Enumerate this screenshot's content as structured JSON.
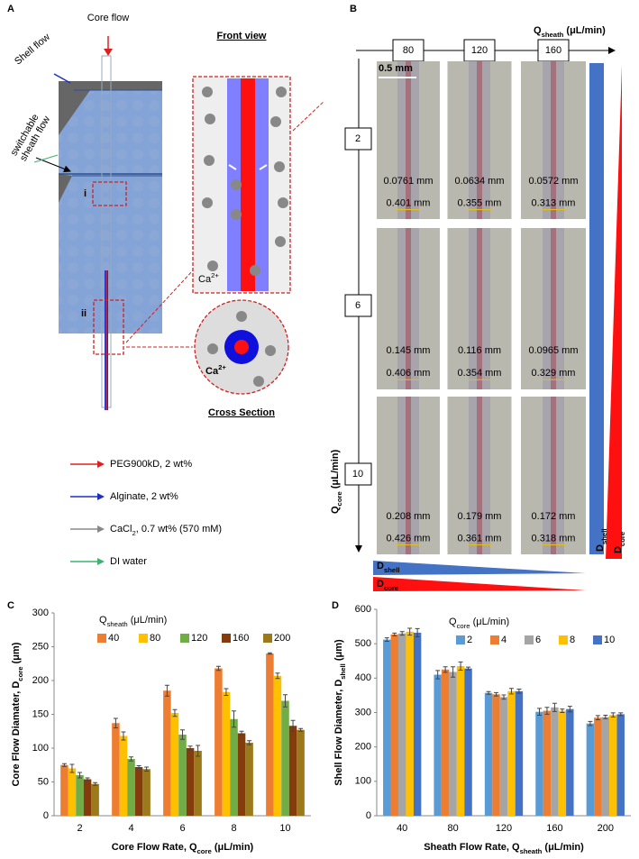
{
  "panel_a": {
    "label": "A",
    "core_flow": "Core flow",
    "shell_flow": "Shell flow",
    "switchable_sheath_flow": [
      "switchable",
      "sheath flow"
    ],
    "inset_i": "i",
    "inset_ii": "ii",
    "front_view": "Front view",
    "front_ca": [
      "Ca",
      "2+"
    ],
    "cross_ca": [
      "Ca",
      "2+"
    ],
    "cross_section": "Cross Section",
    "legend": [
      {
        "parts": [
          "PEG900kD, 2 wt%"
        ],
        "color": "#e02020"
      },
      {
        "parts": [
          "Alginate, 2 wt%"
        ],
        "color": "#1f2fbf"
      },
      {
        "parts": [
          "CaCl",
          "2",
          ", 0.7 wt% (570 mM)"
        ],
        "color": "#888888"
      },
      {
        "parts": [
          "DI water"
        ],
        "color": "#3cb371"
      }
    ]
  },
  "panel_b": {
    "label": "B",
    "q_sheath": [
      "Q",
      "sheath",
      " (μL/min)"
    ],
    "q_core": [
      "Q",
      "core",
      " (μL/min)"
    ],
    "columns": [
      80,
      120,
      160
    ],
    "rows": [
      2,
      6,
      10
    ],
    "scale_bar": "0.5 mm",
    "cells": [
      [
        [
          "0.0761 mm",
          "0.401 mm"
        ],
        [
          "0.0634 mm",
          "0.355 mm"
        ],
        [
          "0.0572 mm",
          "0.313 mm"
        ]
      ],
      [
        [
          "0.145 mm",
          "0.406 mm"
        ],
        [
          "0.116 mm",
          "0.354 mm"
        ],
        [
          "0.0965 mm",
          "0.329 mm"
        ]
      ],
      [
        [
          "0.208 mm",
          "0.426 mm"
        ],
        [
          "0.179 mm",
          "0.361 mm"
        ],
        [
          "0.172 mm",
          "0.318 mm"
        ]
      ]
    ],
    "bar_d_shell": [
      "D",
      "shell"
    ],
    "bar_d_core": [
      "D",
      "core"
    ],
    "wedge_d_shell": [
      "D",
      "shell"
    ],
    "wedge_d_core": [
      "D",
      "core"
    ]
  },
  "chart_data": [
    {
      "type": "bar",
      "panel": "C",
      "legend_title": [
        "Q",
        "sheath",
        " (μL/min)"
      ],
      "x_label": [
        "Core Flow Rate, Q",
        "core",
        " (μL/min)"
      ],
      "y_label": [
        "Core Flow Diamater, D",
        "core",
        " (μm)"
      ],
      "categories": [
        2,
        4,
        6,
        8,
        10
      ],
      "ylim": [
        0,
        300
      ],
      "yticks": [
        0,
        50,
        100,
        150,
        200,
        250,
        300
      ],
      "grid": false,
      "series": [
        {
          "name": "40",
          "color": "#ed7d31",
          "values": [
            75,
            137,
            185,
            218,
            240
          ],
          "errors": [
            2,
            7,
            8,
            3,
            1
          ]
        },
        {
          "name": "80",
          "color": "#ffc000",
          "values": [
            70,
            118,
            152,
            183,
            207
          ],
          "errors": [
            6,
            6,
            5,
            5,
            4
          ]
        },
        {
          "name": "120",
          "color": "#70ad47",
          "values": [
            60,
            84,
            120,
            143,
            170
          ],
          "errors": [
            4,
            3,
            7,
            12,
            9
          ]
        },
        {
          "name": "160",
          "color": "#843c0c",
          "values": [
            54,
            72,
            100,
            122,
            133
          ],
          "errors": [
            2,
            2,
            3,
            3,
            8
          ]
        },
        {
          "name": "200",
          "color": "#9c7a1c",
          "values": [
            47,
            69,
            96,
            108,
            127
          ],
          "errors": [
            2,
            3,
            8,
            3,
            2
          ]
        }
      ]
    },
    {
      "type": "bar",
      "panel": "D",
      "legend_title": [
        "Q",
        "core",
        " (μL/min)"
      ],
      "x_label": [
        "Sheath Flow Rate, Q",
        "sheath",
        " (μL/min)"
      ],
      "y_label": [
        "Shell Flow Diameter, D",
        "shell",
        " (μm)"
      ],
      "categories": [
        40,
        80,
        120,
        160,
        200
      ],
      "ylim": [
        0,
        600
      ],
      "yticks": [
        0,
        100,
        200,
        300,
        400,
        500,
        600
      ],
      "grid": false,
      "series": [
        {
          "name": "2",
          "color": "#5b9bd5",
          "values": [
            512,
            410,
            357,
            302,
            268
          ],
          "errors": [
            5,
            12,
            4,
            10,
            6
          ]
        },
        {
          "name": "4",
          "color": "#ed7d31",
          "values": [
            527,
            425,
            353,
            305,
            285
          ],
          "errors": [
            4,
            8,
            5,
            10,
            6
          ]
        },
        {
          "name": "6",
          "color": "#a5a5a5",
          "values": [
            530,
            418,
            345,
            315,
            287
          ],
          "errors": [
            5,
            15,
            6,
            12,
            5
          ]
        },
        {
          "name": "8",
          "color": "#ffc000",
          "values": [
            535,
            435,
            362,
            305,
            293
          ],
          "errors": [
            10,
            12,
            8,
            5,
            6
          ]
        },
        {
          "name": "10",
          "color": "#4472c4",
          "values": [
            532,
            428,
            362,
            310,
            295
          ],
          "errors": [
            12,
            4,
            6,
            8,
            4
          ]
        }
      ]
    }
  ]
}
